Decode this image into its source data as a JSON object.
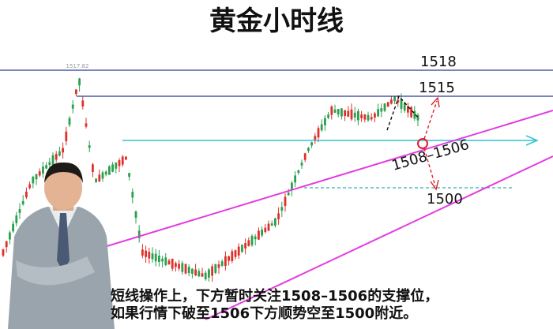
{
  "title": "黄金小时线",
  "peak_label": "1517.82",
  "levels": {
    "upper": "1518",
    "resistance": "1515",
    "support": "1508–1506",
    "target": "1500"
  },
  "caption": [
    "短线操作上，下方暂时关注1508–1506的支撑位，",
    "如果行情下破至1506下方顺势空至1500附近。"
  ]
}
